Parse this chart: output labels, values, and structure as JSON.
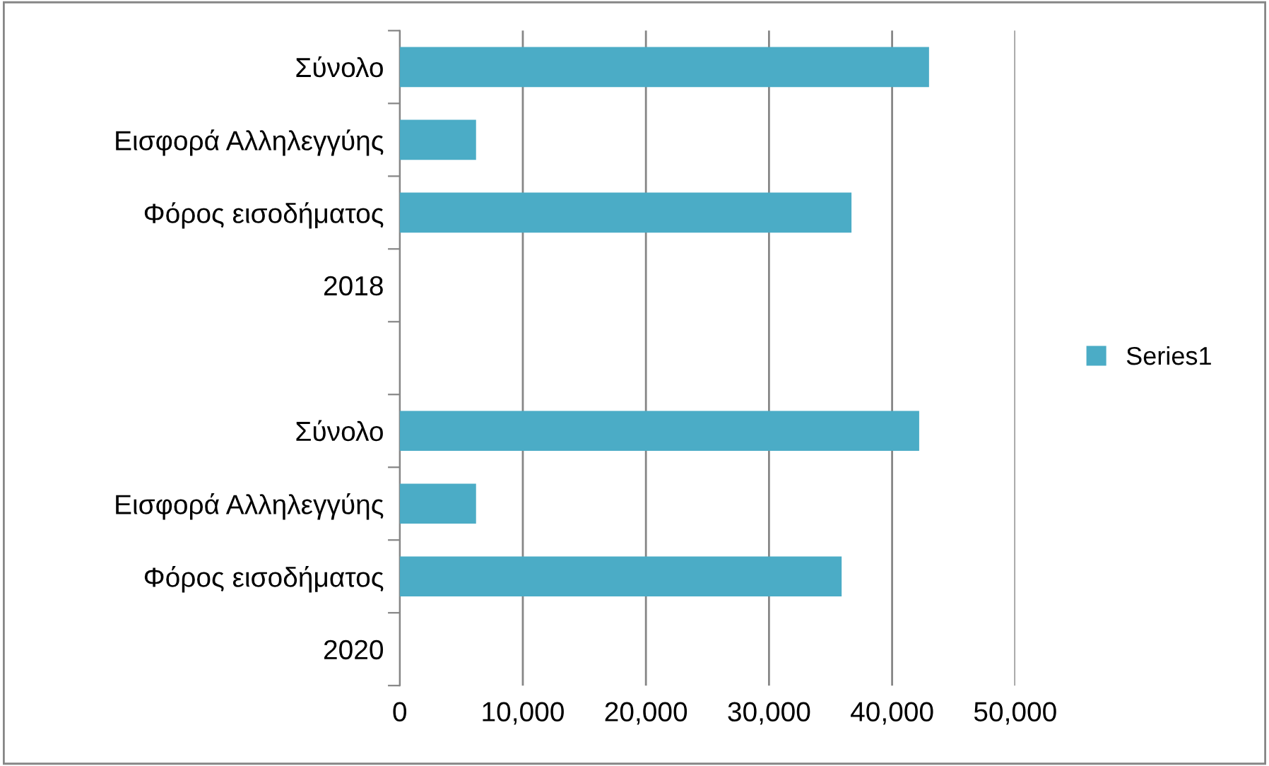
{
  "chart_data": {
    "type": "bar",
    "orientation": "horizontal",
    "categories": [
      "Σύνολο",
      "Εισφορά Αλληλεγγύης",
      "Φόρος εισοδήματος",
      "2018",
      null,
      "Σύνολο",
      "Εισφορά Αλληλεγγύης",
      "Φόρος εισοδήματος",
      "2020"
    ],
    "series": [
      {
        "name": "Series1",
        "color": "#4bacc6",
        "values": [
          43000,
          6200,
          36700,
          null,
          null,
          42200,
          6200,
          35900,
          null
        ]
      }
    ],
    "xlim": [
      0,
      50000
    ],
    "xticks": [
      {
        "value": 0,
        "label": "0"
      },
      {
        "value": 10000,
        "label": "10,000"
      },
      {
        "value": 20000,
        "label": "20,000"
      },
      {
        "value": 30000,
        "label": "30,000"
      },
      {
        "value": 40000,
        "label": "40,000"
      },
      {
        "value": 50000,
        "label": "50,000"
      }
    ],
    "grid": "x",
    "legend": "right"
  }
}
